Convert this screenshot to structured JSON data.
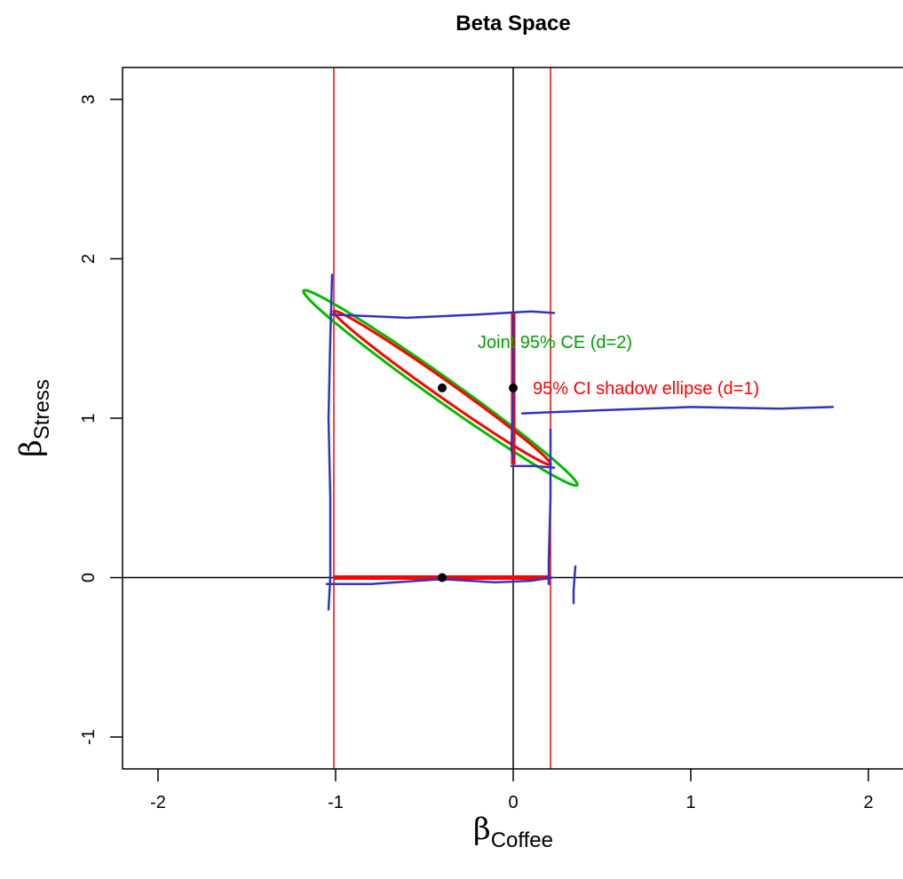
{
  "chart_data": {
    "type": "scatter",
    "title": "Beta Space",
    "xlabel": {
      "symbol": "β",
      "subscript": "Coffee"
    },
    "ylabel": {
      "symbol": "β",
      "subscript": "Stress"
    },
    "xlim": [
      -2.2,
      2.2
    ],
    "ylim": [
      -1.2,
      3.2
    ],
    "xticks": [
      -2,
      -1,
      0,
      1,
      2
    ],
    "yticks": [
      -1,
      0,
      1,
      2,
      3
    ],
    "reference_lines": {
      "vertical_black": [
        0
      ],
      "horizontal_black": [
        0
      ],
      "vertical_red": [
        -1.01,
        0.21
      ]
    },
    "points": [
      {
        "x": -0.4,
        "y": 1.19
      },
      {
        "x": 0.0,
        "y": 1.19
      },
      {
        "x": -0.4,
        "y": 0.0
      }
    ],
    "ellipses": [
      {
        "name": "Joint 95% CE (d=2)",
        "color": "#00bb00",
        "center": [
          -0.4,
          1.19
        ],
        "end_a": [
          -1.18,
          1.8
        ],
        "end_b": [
          0.36,
          0.58
        ],
        "minor_half": 0.07
      },
      {
        "name": "95% CI shadow ellipse (d=1)",
        "color": "#ff0000",
        "center": [
          -0.4,
          1.19
        ],
        "end_a": [
          -1.01,
          1.67
        ],
        "end_b": [
          0.21,
          0.71
        ],
        "minor_half": 0.05
      }
    ],
    "ci_bars": [
      {
        "axis": "y",
        "x": 0.0,
        "from": 0.71,
        "to": 1.67,
        "color": "#ff0000"
      },
      {
        "axis": "x",
        "y": 0.0,
        "from": -1.01,
        "to": 0.21,
        "color": "#ff0000"
      }
    ],
    "annotations": [
      {
        "text": "Joint 95% CE (d=2)",
        "x": -0.2,
        "y": 1.48,
        "color": "#00a000"
      },
      {
        "text": "95% CI shadow ellipse (d=1)",
        "x": 0.11,
        "y": 1.19,
        "color": "#ff0000"
      }
    ],
    "handdrawn_marks": [
      {
        "color": "#3333bb",
        "points": [
          [
            -1.02,
            1.9
          ],
          [
            -1.03,
            1.5
          ],
          [
            -1.04,
            1.0
          ],
          [
            -1.03,
            0.5
          ],
          [
            -1.03,
            0.0
          ],
          [
            -1.04,
            -0.2
          ]
        ]
      },
      {
        "color": "#3333bb",
        "points": [
          [
            -1.03,
            1.65
          ],
          [
            -0.6,
            1.63
          ],
          [
            -0.2,
            1.65
          ],
          [
            0.1,
            1.67
          ],
          [
            0.23,
            1.66
          ]
        ]
      },
      {
        "color": "#3333bb",
        "points": [
          [
            -1.05,
            -0.04
          ],
          [
            -0.8,
            -0.04
          ],
          [
            -0.4,
            -0.01
          ],
          [
            -0.1,
            -0.03
          ],
          [
            0.1,
            -0.02
          ],
          [
            0.22,
            0.0
          ]
        ]
      },
      {
        "color": "#3333bb",
        "points": [
          [
            0.21,
            0.93
          ],
          [
            0.21,
            0.5
          ],
          [
            0.2,
            0.1
          ],
          [
            0.2,
            -0.04
          ]
        ]
      },
      {
        "color": "#3333bb",
        "points": [
          [
            0.0,
            1.64
          ],
          [
            0.0,
            1.2
          ],
          [
            -0.01,
            0.8
          ],
          [
            0.0,
            0.74
          ]
        ]
      },
      {
        "color": "#3333bb",
        "points": [
          [
            -0.01,
            0.7
          ],
          [
            0.12,
            0.7
          ],
          [
            0.23,
            0.69
          ]
        ]
      },
      {
        "color": "#3333bb",
        "points": [
          [
            0.05,
            1.03
          ],
          [
            0.5,
            1.05
          ],
          [
            1.0,
            1.07
          ],
          [
            1.5,
            1.06
          ],
          [
            1.8,
            1.07
          ]
        ]
      },
      {
        "color": "#3333bb",
        "points": [
          [
            0.35,
            0.07
          ],
          [
            0.34,
            -0.08
          ],
          [
            0.34,
            -0.16
          ]
        ]
      }
    ]
  }
}
